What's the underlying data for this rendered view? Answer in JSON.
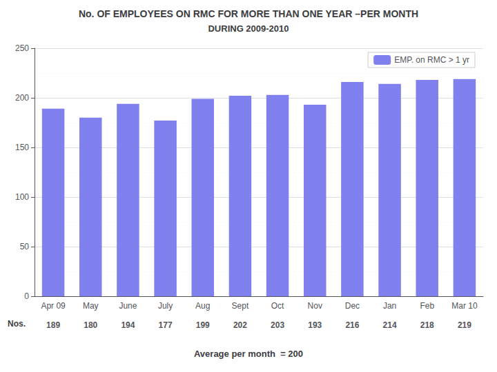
{
  "chart_data": {
    "type": "bar",
    "title": "No. OF EMPLOYEES ON RMC FOR MORE THAN ONE YEAR –PER MONTH",
    "subtitle": "DURING 2009-2010",
    "categories": [
      "Apr 09",
      "May",
      "June",
      "July",
      "Aug",
      "Sept",
      "Oct",
      "Nov",
      "Dec",
      "Jan",
      "Feb",
      "Mar 10"
    ],
    "series": [
      {
        "name": "EMP. on RMC > 1 yr",
        "color": "#8080ee",
        "values": [
          189,
          180,
          194,
          177,
          199,
          202,
          203,
          193,
          216,
          214,
          218,
          219
        ]
      }
    ],
    "ylim": [
      0,
      250
    ],
    "yticks": [
      0,
      50,
      100,
      150,
      200,
      250
    ],
    "grid": true,
    "legend": "upper right",
    "data_labels": true,
    "annotations": [
      "Nos.",
      "Average per month  = 200"
    ]
  }
}
